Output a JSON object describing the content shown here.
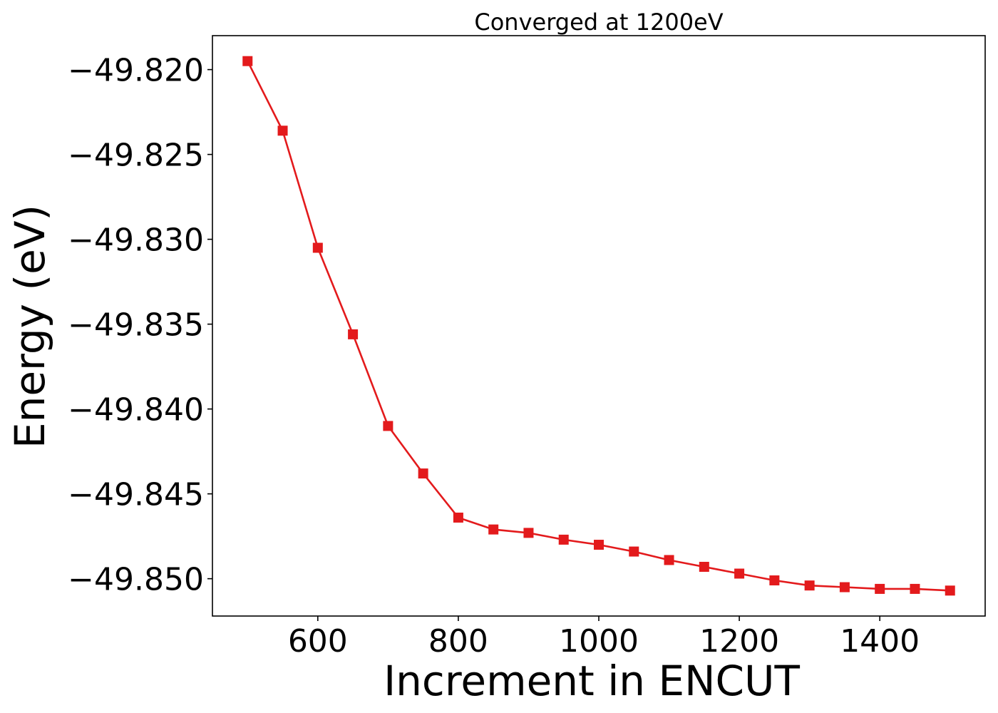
{
  "chart_data": {
    "type": "line",
    "title": "Converged at 1200eV",
    "xlabel": "Increment in ENCUT",
    "ylabel": "Energy (eV)",
    "xlim": [
      450,
      1550
    ],
    "ylim": [
      -49.8522,
      -49.818
    ],
    "xticks": [
      600,
      800,
      1000,
      1200,
      1400
    ],
    "xtick_labels": [
      "600",
      "800",
      "1000",
      "1200",
      "1400"
    ],
    "yticks": [
      -49.82,
      -49.825,
      -49.83,
      -49.835,
      -49.84,
      -49.845,
      -49.85
    ],
    "ytick_labels": [
      "−49.820",
      "−49.825",
      "−49.830",
      "−49.835",
      "−49.840",
      "−49.845",
      "−49.850"
    ],
    "grid": false,
    "legend": "none",
    "series": [
      {
        "color": "#e31a1c",
        "marker": "square",
        "x": [
          500,
          550,
          600,
          650,
          700,
          750,
          800,
          850,
          900,
          950,
          1000,
          1050,
          1100,
          1150,
          1200,
          1250,
          1300,
          1350,
          1400,
          1450,
          1500
        ],
        "y": [
          -49.8195,
          -49.8236,
          -49.8305,
          -49.8356,
          -49.841,
          -49.8438,
          -49.8464,
          -49.8471,
          -49.8473,
          -49.8477,
          -49.848,
          -49.8484,
          -49.8489,
          -49.8493,
          -49.8497,
          -49.8501,
          -49.8504,
          -49.8505,
          -49.8506,
          -49.8506,
          -49.8507
        ]
      }
    ]
  }
}
